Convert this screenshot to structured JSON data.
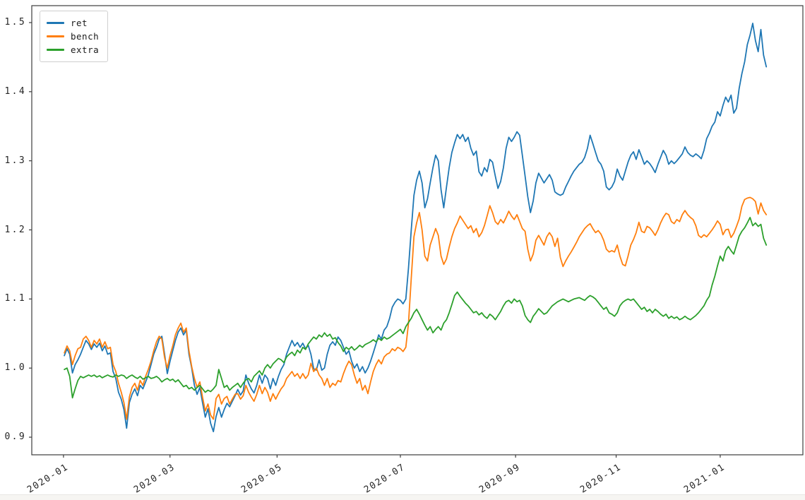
{
  "figure": {
    "background": "#ffffff"
  },
  "chart_data": {
    "type": "line",
    "title": "",
    "xlabel": "",
    "ylabel": "",
    "grid": false,
    "legend_position": "upper left",
    "legend_labels": [
      "ret",
      "bench",
      "extra"
    ],
    "x_unit": "trading-day index from 2020-01-02",
    "xlim_index": [
      -12,
      272.5
    ],
    "ylim": [
      0.8745,
      1.5245
    ],
    "y_ticks": [
      0.9,
      1.0,
      1.1,
      1.2,
      1.3,
      1.4,
      1.5
    ],
    "x_ticks": [
      {
        "index": -0.3,
        "label": "2020-01"
      },
      {
        "index": 39,
        "label": "2020-03"
      },
      {
        "index": 78.5,
        "label": "2020-05"
      },
      {
        "index": 124,
        "label": "2020-07"
      },
      {
        "index": 166.5,
        "label": "2020-09"
      },
      {
        "index": 203.6,
        "label": "2020-11"
      },
      {
        "index": 242,
        "label": "2021-01"
      }
    ],
    "axis_color": "#3c3c3c",
    "series": [
      {
        "name": "ret",
        "color": "#1f77b4",
        "values": [
          1.018,
          1.028,
          1.02,
          0.993,
          1.005,
          1.012,
          1.02,
          1.03,
          1.04,
          1.035,
          1.027,
          1.035,
          1.03,
          1.036,
          1.025,
          1.032,
          1.02,
          1.022,
          0.995,
          0.985,
          0.965,
          0.955,
          0.94,
          0.913,
          0.95,
          0.962,
          0.97,
          0.96,
          0.975,
          0.97,
          0.98,
          0.99,
          1.005,
          1.02,
          1.03,
          1.042,
          1.046,
          1.02,
          0.992,
          1.01,
          1.025,
          1.04,
          1.052,
          1.058,
          1.048,
          1.055,
          1.02,
          1.0,
          0.975,
          0.962,
          0.972,
          0.95,
          0.929,
          0.941,
          0.92,
          0.908,
          0.93,
          0.943,
          0.929,
          0.94,
          0.949,
          0.944,
          0.952,
          0.96,
          0.969,
          0.961,
          0.967,
          0.99,
          0.978,
          0.97,
          0.964,
          0.975,
          0.99,
          0.978,
          0.99,
          0.985,
          0.97,
          0.985,
          0.975,
          0.988,
          0.998,
          1.005,
          1.02,
          1.03,
          1.04,
          1.032,
          1.037,
          1.03,
          1.036,
          1.028,
          1.033,
          1.02,
          0.999,
          0.997,
          1.012,
          0.997,
          1.0,
          1.02,
          1.033,
          1.038,
          1.033,
          1.045,
          1.04,
          1.03,
          1.02,
          1.025,
          1.01,
          1.0,
          1.006,
          0.995,
          1.002,
          0.993,
          1.0,
          1.01,
          1.022,
          1.035,
          1.048,
          1.042,
          1.055,
          1.06,
          1.072,
          1.088,
          1.095,
          1.1,
          1.098,
          1.093,
          1.1,
          1.145,
          1.2,
          1.25,
          1.272,
          1.285,
          1.268,
          1.232,
          1.245,
          1.268,
          1.29,
          1.308,
          1.3,
          1.258,
          1.232,
          1.262,
          1.29,
          1.312,
          1.326,
          1.338,
          1.332,
          1.338,
          1.328,
          1.334,
          1.318,
          1.308,
          1.314,
          1.284,
          1.278,
          1.29,
          1.284,
          1.302,
          1.298,
          1.278,
          1.26,
          1.27,
          1.29,
          1.318,
          1.334,
          1.328,
          1.334,
          1.342,
          1.337,
          1.308,
          1.278,
          1.248,
          1.225,
          1.242,
          1.268,
          1.282,
          1.275,
          1.268,
          1.274,
          1.28,
          1.272,
          1.255,
          1.252,
          1.25,
          1.252,
          1.262,
          1.27,
          1.278,
          1.285,
          1.29,
          1.295,
          1.298,
          1.305,
          1.318,
          1.337,
          1.325,
          1.312,
          1.3,
          1.295,
          1.285,
          1.262,
          1.258,
          1.262,
          1.27,
          1.288,
          1.278,
          1.272,
          1.285,
          1.298,
          1.308,
          1.313,
          1.302,
          1.316,
          1.306,
          1.295,
          1.3,
          1.296,
          1.29,
          1.283,
          1.295,
          1.305,
          1.315,
          1.308,
          1.295,
          1.3,
          1.296,
          1.3,
          1.305,
          1.31,
          1.32,
          1.312,
          1.308,
          1.306,
          1.31,
          1.307,
          1.303,
          1.315,
          1.332,
          1.34,
          1.35,
          1.356,
          1.371,
          1.365,
          1.38,
          1.392,
          1.385,
          1.395,
          1.369,
          1.376,
          1.405,
          1.426,
          1.443,
          1.468,
          1.482,
          1.499,
          1.474,
          1.458,
          1.49,
          1.453,
          1.436
        ]
      },
      {
        "name": "bench",
        "color": "#ff7f0e",
        "values": [
          1.022,
          1.032,
          1.025,
          1.005,
          1.018,
          1.028,
          1.03,
          1.042,
          1.046,
          1.04,
          1.03,
          1.04,
          1.035,
          1.042,
          1.03,
          1.038,
          1.028,
          1.03,
          1.005,
          0.995,
          0.978,
          0.965,
          0.95,
          0.926,
          0.958,
          0.972,
          0.978,
          0.968,
          0.982,
          0.975,
          0.988,
          0.998,
          1.01,
          1.025,
          1.038,
          1.046,
          1.042,
          1.015,
          1.0,
          1.018,
          1.032,
          1.048,
          1.058,
          1.065,
          1.052,
          1.058,
          1.025,
          1.002,
          0.985,
          0.972,
          0.98,
          0.958,
          0.938,
          0.948,
          0.932,
          0.926,
          0.956,
          0.962,
          0.948,
          0.956,
          0.959,
          0.948,
          0.955,
          0.962,
          0.963,
          0.955,
          0.96,
          0.975,
          0.965,
          0.958,
          0.952,
          0.962,
          0.975,
          0.963,
          0.972,
          0.965,
          0.952,
          0.963,
          0.955,
          0.963,
          0.97,
          0.975,
          0.985,
          0.99,
          0.995,
          0.988,
          0.992,
          0.985,
          0.992,
          0.985,
          0.99,
          1.007,
          0.995,
          1.0,
          0.99,
          0.985,
          0.975,
          0.985,
          0.972,
          0.978,
          0.975,
          0.982,
          0.98,
          0.992,
          1.002,
          1.01,
          1.005,
          0.99,
          0.978,
          0.985,
          0.968,
          0.975,
          0.963,
          0.98,
          0.995,
          1.005,
          1.012,
          1.006,
          1.016,
          1.02,
          1.022,
          1.028,
          1.025,
          1.03,
          1.028,
          1.024,
          1.03,
          1.065,
          1.13,
          1.19,
          1.21,
          1.225,
          1.2,
          1.162,
          1.155,
          1.178,
          1.19,
          1.202,
          1.192,
          1.162,
          1.15,
          1.158,
          1.175,
          1.19,
          1.202,
          1.21,
          1.22,
          1.214,
          1.208,
          1.202,
          1.206,
          1.196,
          1.202,
          1.19,
          1.196,
          1.206,
          1.22,
          1.235,
          1.225,
          1.212,
          1.208,
          1.215,
          1.21,
          1.218,
          1.227,
          1.22,
          1.215,
          1.222,
          1.212,
          1.202,
          1.198,
          1.172,
          1.155,
          1.165,
          1.185,
          1.192,
          1.185,
          1.178,
          1.19,
          1.196,
          1.19,
          1.176,
          1.188,
          1.16,
          1.147,
          1.155,
          1.162,
          1.168,
          1.175,
          1.182,
          1.19,
          1.196,
          1.202,
          1.206,
          1.209,
          1.202,
          1.196,
          1.199,
          1.194,
          1.185,
          1.172,
          1.168,
          1.17,
          1.168,
          1.178,
          1.162,
          1.15,
          1.148,
          1.162,
          1.178,
          1.186,
          1.196,
          1.211,
          1.198,
          1.196,
          1.205,
          1.203,
          1.198,
          1.192,
          1.2,
          1.21,
          1.218,
          1.224,
          1.222,
          1.212,
          1.209,
          1.215,
          1.212,
          1.222,
          1.228,
          1.222,
          1.218,
          1.215,
          1.206,
          1.192,
          1.189,
          1.193,
          1.19,
          1.195,
          1.2,
          1.206,
          1.213,
          1.208,
          1.193,
          1.2,
          1.201,
          1.189,
          1.195,
          1.205,
          1.216,
          1.234,
          1.244,
          1.246,
          1.247,
          1.245,
          1.241,
          1.223,
          1.239,
          1.228,
          1.222
        ]
      },
      {
        "name": "extra",
        "color": "#2ca02c",
        "values": [
          0.998,
          1.0,
          0.988,
          0.957,
          0.97,
          0.982,
          0.988,
          0.986,
          0.988,
          0.99,
          0.988,
          0.99,
          0.987,
          0.989,
          0.986,
          0.988,
          0.99,
          0.988,
          0.987,
          0.99,
          0.988,
          0.99,
          0.989,
          0.985,
          0.988,
          0.99,
          0.987,
          0.985,
          0.988,
          0.984,
          0.986,
          0.988,
          0.985,
          0.986,
          0.988,
          0.985,
          0.98,
          0.983,
          0.985,
          0.982,
          0.984,
          0.98,
          0.983,
          0.978,
          0.973,
          0.975,
          0.97,
          0.972,
          0.968,
          0.972,
          0.975,
          0.97,
          0.965,
          0.968,
          0.966,
          0.97,
          0.975,
          0.998,
          0.985,
          0.972,
          0.975,
          0.968,
          0.972,
          0.975,
          0.978,
          0.972,
          0.978,
          0.983,
          0.985,
          0.98,
          0.988,
          0.992,
          0.996,
          0.99,
          1.0,
          1.005,
          1.0,
          1.006,
          1.01,
          1.014,
          1.012,
          1.008,
          1.016,
          1.02,
          1.023,
          1.018,
          1.026,
          1.022,
          1.03,
          1.027,
          1.035,
          1.04,
          1.045,
          1.042,
          1.048,
          1.045,
          1.051,
          1.046,
          1.049,
          1.042,
          1.044,
          1.037,
          1.032,
          1.024,
          1.03,
          1.027,
          1.031,
          1.026,
          1.029,
          1.033,
          1.03,
          1.034,
          1.036,
          1.038,
          1.041,
          1.038,
          1.043,
          1.04,
          1.045,
          1.042,
          1.044,
          1.047,
          1.05,
          1.053,
          1.056,
          1.05,
          1.06,
          1.066,
          1.072,
          1.08,
          1.085,
          1.078,
          1.07,
          1.062,
          1.055,
          1.06,
          1.051,
          1.056,
          1.06,
          1.055,
          1.065,
          1.07,
          1.08,
          1.092,
          1.105,
          1.11,
          1.104,
          1.099,
          1.094,
          1.09,
          1.085,
          1.08,
          1.082,
          1.077,
          1.08,
          1.075,
          1.072,
          1.078,
          1.075,
          1.07,
          1.076,
          1.082,
          1.09,
          1.096,
          1.098,
          1.094,
          1.1,
          1.096,
          1.098,
          1.09,
          1.076,
          1.07,
          1.066,
          1.075,
          1.08,
          1.086,
          1.082,
          1.078,
          1.08,
          1.085,
          1.09,
          1.093,
          1.096,
          1.098,
          1.1,
          1.098,
          1.096,
          1.098,
          1.1,
          1.101,
          1.102,
          1.1,
          1.098,
          1.102,
          1.105,
          1.103,
          1.1,
          1.095,
          1.09,
          1.085,
          1.088,
          1.08,
          1.078,
          1.075,
          1.08,
          1.09,
          1.095,
          1.098,
          1.1,
          1.098,
          1.1,
          1.095,
          1.09,
          1.085,
          1.088,
          1.082,
          1.085,
          1.08,
          1.085,
          1.082,
          1.078,
          1.075,
          1.078,
          1.072,
          1.075,
          1.072,
          1.074,
          1.07,
          1.072,
          1.075,
          1.072,
          1.07,
          1.073,
          1.076,
          1.08,
          1.085,
          1.09,
          1.098,
          1.104,
          1.12,
          1.133,
          1.148,
          1.162,
          1.155,
          1.17,
          1.176,
          1.17,
          1.165,
          1.178,
          1.191,
          1.198,
          1.203,
          1.21,
          1.218,
          1.206,
          1.21,
          1.205,
          1.208,
          1.188,
          1.178
        ]
      }
    ]
  }
}
